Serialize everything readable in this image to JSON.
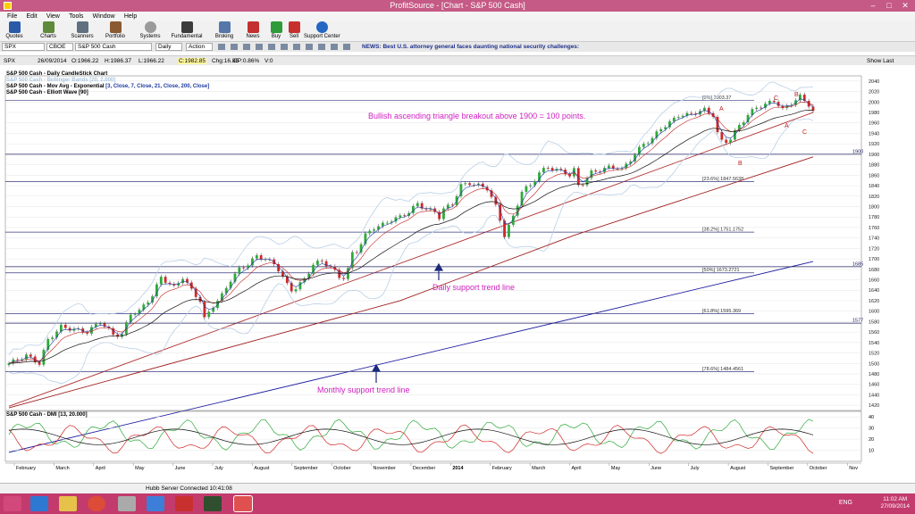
{
  "window": {
    "title": "ProfitSource - [Chart - S&P 500 Cash]"
  },
  "menu": [
    "File",
    "Edit",
    "View",
    "Tools",
    "Window",
    "Help"
  ],
  "toolbar": [
    "Quotes",
    "Charts",
    "Scanners",
    "Portfolio",
    "Systems",
    "Fundamental",
    "Broking",
    "News",
    "Buy",
    "Sell",
    "Support Center"
  ],
  "symbolbar": {
    "symbol": "SPX",
    "exchange": "CBOE",
    "name": "S&P 500 Cash",
    "period": "Daily",
    "action": "Action",
    "news": "NEWS: Best U.S. attorney general faces daunting national security challenges:"
  },
  "infobar": {
    "symbol": "SPX",
    "date": "26/09/2014",
    "open": "O:1966.22",
    "high": "H:1986.37",
    "low": "L:1966.22",
    "close": "C:1982.85",
    "change": "Chg:16.86",
    "changepct": "CP:0.86%",
    "volume": "V:0",
    "show_last": "Show Last"
  },
  "legend": [
    {
      "text": "S&P 500 Cash - Daily CandleStick Chart",
      "color": "#000000"
    },
    {
      "text": "S&P 500 Cash - Bollinger Bands [20, 2.000]",
      "color": "#a9c4de"
    },
    {
      "text": "S&P 500 Cash - Mov Avg - Exponential",
      "color": "#000000",
      "params": "[3, Close, 7, Close, 21, Close, 200, Close]"
    },
    {
      "text": "S&P 500 Cash - Elliott Wave [90]",
      "color": "#000000"
    }
  ],
  "annotations": {
    "headline": "Bullish ascending triangle breakout above 1900 = 100 points.",
    "daily": "Daily support trend line",
    "monthly": "Monthly support trend line"
  },
  "fib_levels": [
    {
      "label": "[0%] 2003.37",
      "value": 2003.37
    },
    {
      "label": "[23.6%] 1847.5638",
      "value": 1847.5638
    },
    {
      "label": "[38.2%] 1751.1752",
      "value": 1751.1752
    },
    {
      "label": "[50%] 1673.2721",
      "value": 1673.2721
    },
    {
      "label": "[61.8%] 1595.369",
      "value": 1595.369
    },
    {
      "label": "[78.6%] 1484.4561",
      "value": 1484.4561
    }
  ],
  "hlines": [
    {
      "label": "1900",
      "value": 1900
    },
    {
      "label": "1685",
      "value": 1685
    },
    {
      "label": "1577",
      "value": 1577
    }
  ],
  "waves": [
    "A",
    "B",
    "C",
    "A",
    "B",
    "C"
  ],
  "dmi_legend": "S&P 500 Cash - DMI [13, 20.000]",
  "chart_data": {
    "type": "candlestick",
    "title": "S&P 500 Cash - Daily CandleStick Chart",
    "ylim": [
      1410,
      2050
    ],
    "y_ticks": [
      1420,
      1440,
      1460,
      1480,
      1500,
      1520,
      1540,
      1560,
      1580,
      1600,
      1620,
      1640,
      1660,
      1680,
      1700,
      1720,
      1740,
      1760,
      1780,
      1800,
      1820,
      1840,
      1860,
      1880,
      1900,
      1920,
      1940,
      1960,
      1980,
      2000,
      2020,
      2040
    ],
    "x_labels": [
      "February",
      "March",
      "April",
      "May",
      "June",
      "July",
      "August",
      "September",
      "October",
      "November",
      "December",
      "2014",
      "February",
      "March",
      "April",
      "May",
      "June",
      "July",
      "August",
      "September",
      "October",
      "Nov"
    ],
    "close_path": [
      [
        0,
        1500
      ],
      [
        4,
        1515
      ],
      [
        7,
        1500
      ],
      [
        9,
        1545
      ],
      [
        12,
        1570
      ],
      [
        15,
        1565
      ],
      [
        18,
        1560
      ],
      [
        21,
        1580
      ],
      [
        24,
        1555
      ],
      [
        26,
        1555
      ],
      [
        28,
        1595
      ],
      [
        30,
        1600
      ],
      [
        33,
        1630
      ],
      [
        35,
        1665
      ],
      [
        38,
        1645
      ],
      [
        40,
        1665
      ],
      [
        42,
        1640
      ],
      [
        44,
        1620
      ],
      [
        45,
        1585
      ],
      [
        47,
        1610
      ],
      [
        49,
        1630
      ],
      [
        51,
        1660
      ],
      [
        53,
        1680
      ],
      [
        55,
        1690
      ],
      [
        57,
        1705
      ],
      [
        59,
        1700
      ],
      [
        61,
        1690
      ],
      [
        62,
        1680
      ],
      [
        63,
        1665
      ],
      [
        64,
        1650
      ],
      [
        65,
        1640
      ],
      [
        66,
        1645
      ],
      [
        68,
        1660
      ],
      [
        70,
        1690
      ],
      [
        72,
        1695
      ],
      [
        74,
        1685
      ],
      [
        76,
        1665
      ],
      [
        77,
        1665
      ],
      [
        78,
        1680
      ],
      [
        79,
        1710
      ],
      [
        80,
        1715
      ],
      [
        82,
        1745
      ],
      [
        84,
        1760
      ],
      [
        86,
        1765
      ],
      [
        88,
        1775
      ],
      [
        90,
        1780
      ],
      [
        92,
        1790
      ],
      [
        94,
        1805
      ],
      [
        96,
        1795
      ],
      [
        98,
        1790
      ],
      [
        99,
        1780
      ],
      [
        100,
        1795
      ],
      [
        102,
        1805
      ],
      [
        104,
        1840
      ],
      [
        106,
        1845
      ],
      [
        108,
        1840
      ],
      [
        110,
        1835
      ],
      [
        112,
        1800
      ],
      [
        113,
        1775
      ],
      [
        114,
        1745
      ],
      [
        116,
        1780
      ],
      [
        118,
        1830
      ],
      [
        120,
        1840
      ],
      [
        122,
        1865
      ],
      [
        124,
        1875
      ],
      [
        126,
        1870
      ],
      [
        128,
        1865
      ],
      [
        129,
        1860
      ],
      [
        130,
        1870
      ],
      [
        131,
        1840
      ],
      [
        132,
        1845
      ],
      [
        134,
        1865
      ],
      [
        136,
        1870
      ],
      [
        138,
        1875
      ],
      [
        140,
        1875
      ],
      [
        141,
        1870
      ],
      [
        142,
        1880
      ],
      [
        144,
        1900
      ],
      [
        146,
        1920
      ],
      [
        148,
        1930
      ],
      [
        150,
        1950
      ],
      [
        152,
        1960
      ],
      [
        154,
        1975
      ],
      [
        156,
        1975
      ],
      [
        158,
        1980
      ],
      [
        160,
        1985
      ],
      [
        162,
        1975
      ],
      [
        163,
        1940
      ],
      [
        164,
        1925
      ],
      [
        165,
        1925
      ],
      [
        166,
        1930
      ],
      [
        168,
        1955
      ],
      [
        170,
        1975
      ],
      [
        172,
        1990
      ],
      [
        174,
        1995
      ],
      [
        176,
        2003
      ],
      [
        177,
        1995
      ],
      [
        178,
        1985
      ],
      [
        180,
        1998
      ],
      [
        182,
        2010
      ],
      [
        184,
        1995
      ],
      [
        185,
        1983
      ]
    ],
    "ema200_path": [
      [
        0,
        1415
      ],
      [
        90,
        1620
      ],
      [
        130,
        1745
      ],
      [
        185,
        1895
      ]
    ],
    "daily_support_line": [
      [
        0,
        1418
      ],
      [
        185,
        1980
      ]
    ],
    "monthly_support_line": [
      [
        0,
        1330
      ],
      [
        185,
        1695
      ]
    ],
    "dmi": {
      "ylim": [
        0,
        45
      ],
      "y_ticks": [
        10,
        20,
        30,
        40
      ]
    }
  }
}
